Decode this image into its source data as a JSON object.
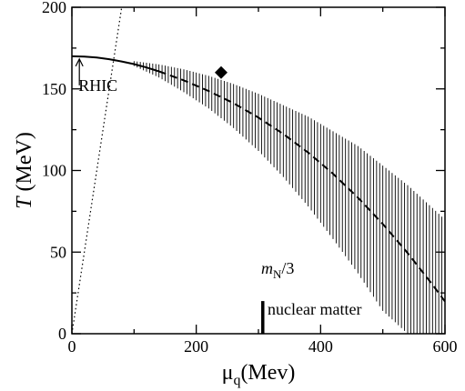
{
  "chart_data": {
    "type": "line",
    "xlim": [
      0,
      600
    ],
    "ylim": [
      0,
      200
    ],
    "xticks": [
      0,
      200,
      400,
      600
    ],
    "yticks": [
      0,
      50,
      100,
      150,
      200
    ],
    "xlabel_main": "μ",
    "xlabel_sub": "q",
    "xlabel_unit": "(Mev)",
    "ylabel_main": "T",
    "ylabel_unit": " (MeV)",
    "grid": false,
    "series": [
      {
        "style": "solid",
        "x": [
          0,
          20,
          40,
          60,
          80,
          100,
          120,
          140
        ],
        "y": [
          170,
          169.8,
          169.2,
          168.2,
          166.8,
          165.2,
          163.1,
          160.7
        ]
      },
      {
        "style": "dashed",
        "x": [
          140,
          180,
          220,
          260,
          300,
          340,
          380,
          420,
          460,
          500,
          540,
          580,
          600
        ],
        "y": [
          160.7,
          155.2,
          148.7,
          141.2,
          132.4,
          122.4,
          111.0,
          98.0,
          83.4,
          67.2,
          49.4,
          30.0,
          19.8
        ]
      },
      {
        "style": "dotted",
        "x": [
          0,
          80
        ],
        "y": [
          0,
          200
        ]
      }
    ],
    "uncertainty_band": {
      "x": [
        100,
        140,
        180,
        220,
        260,
        300,
        340,
        380,
        420,
        460,
        500,
        540,
        580,
        600
      ],
      "upper": [
        167,
        165,
        162,
        158,
        153,
        147,
        140,
        133,
        124,
        115,
        103,
        91,
        77,
        70
      ],
      "lower": [
        164,
        157,
        148,
        138,
        126,
        112,
        96,
        78,
        58,
        37,
        14,
        0,
        0,
        0
      ]
    },
    "points": [
      {
        "x": 240,
        "y": 160,
        "xerr": 8,
        "marker": "diamond"
      }
    ],
    "markers": [
      {
        "x": 307,
        "y_from": 0,
        "y_to": 20
      }
    ],
    "annotations": {
      "rhic": {
        "text": "RHIC",
        "x": 12,
        "y": 170
      },
      "mn_main": "m",
      "mn_sub": "N",
      "mn_rest": "/3",
      "nuclear": "nuclear matter"
    }
  }
}
